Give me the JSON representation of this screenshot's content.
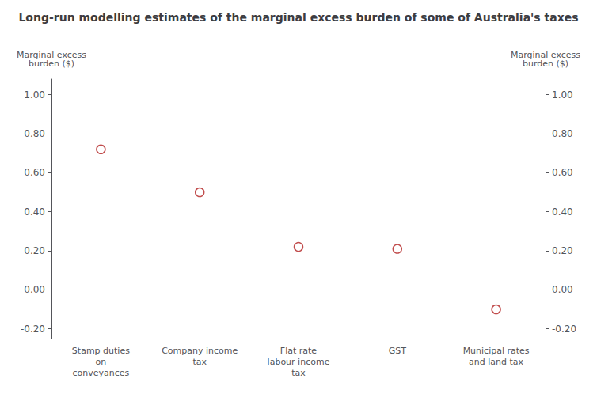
{
  "chart_data": {
    "type": "scatter",
    "title": "Long-run modelling estimates of the marginal excess burden of some of Australia's taxes",
    "categories": [
      "Stamp duties\non\nconveyances",
      "Company income\ntax",
      "Flat rate\nlabour income\ntax",
      "GST",
      "Municipal rates\nand land tax"
    ],
    "values": [
      0.72,
      0.5,
      0.22,
      0.21,
      -0.1
    ],
    "color": "#b22020",
    "marker": "circle",
    "ylim": [
      -0.25,
      1.08
    ],
    "yticks": [
      {
        "value": -0.2,
        "label": "-0.20"
      },
      {
        "value": 0.0,
        "label": "0.00"
      },
      {
        "value": 0.2,
        "label": "0.20"
      },
      {
        "value": 0.4,
        "label": "0.40"
      },
      {
        "value": 0.6,
        "label": "0.60"
      },
      {
        "value": 0.8,
        "label": "0.80"
      },
      {
        "value": 1.0,
        "label": "1.00"
      }
    ],
    "y2lim": [
      -0.25,
      1.08
    ],
    "y2ticks": [
      {
        "value": -0.2,
        "label": "-0.20"
      },
      {
        "value": 0.0,
        "label": "0.00"
      },
      {
        "value": 0.2,
        "label": "0.20"
      },
      {
        "value": 0.4,
        "label": "0.40"
      },
      {
        "value": 0.6,
        "label": "0.60"
      },
      {
        "value": 0.8,
        "label": "0.80"
      },
      {
        "value": 1.0,
        "label": "1.00"
      }
    ],
    "ylabel": "Marginal excess\nburden ($)",
    "y2label": "Marginal excess\nburden ($)",
    "grid": false
  }
}
